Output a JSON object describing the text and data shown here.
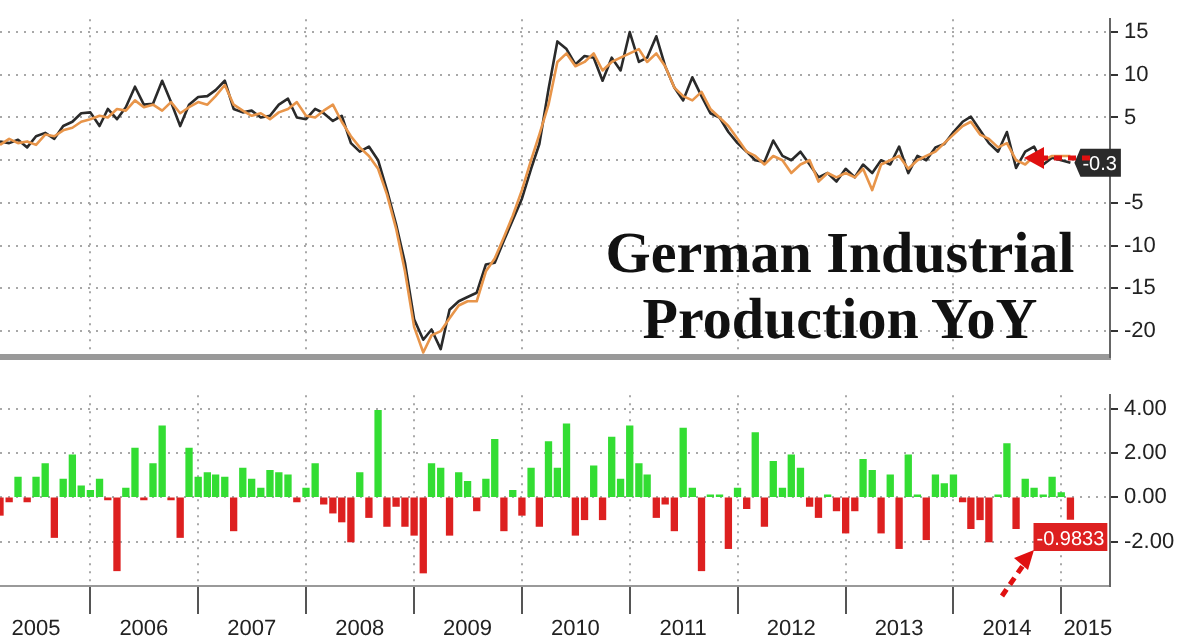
{
  "chart_data": [
    {
      "type": "line",
      "title": "German Industrial Production YoY",
      "x": [
        "2005-03",
        "2005-04",
        "2005-05",
        "2005-06",
        "2005-07",
        "2005-08",
        "2005-09",
        "2005-10",
        "2005-11",
        "2005-12",
        "2006-01",
        "2006-02",
        "2006-03",
        "2006-04",
        "2006-05",
        "2006-06",
        "2006-07",
        "2006-08",
        "2006-09",
        "2006-10",
        "2006-11",
        "2006-12",
        "2007-01",
        "2007-02",
        "2007-03",
        "2007-04",
        "2007-05",
        "2007-06",
        "2007-07",
        "2007-08",
        "2007-09",
        "2007-10",
        "2007-11",
        "2007-12",
        "2008-01",
        "2008-02",
        "2008-03",
        "2008-04",
        "2008-05",
        "2008-06",
        "2008-07",
        "2008-08",
        "2008-09",
        "2008-10",
        "2008-11",
        "2008-12",
        "2009-01",
        "2009-02",
        "2009-03",
        "2009-04",
        "2009-05",
        "2009-06",
        "2009-07",
        "2009-08",
        "2009-09",
        "2009-10",
        "2009-11",
        "2009-12",
        "2010-01",
        "2010-02",
        "2010-03",
        "2010-04",
        "2010-05",
        "2010-06",
        "2010-07",
        "2010-08",
        "2010-09",
        "2010-10",
        "2010-11",
        "2010-12",
        "2011-01",
        "2011-02",
        "2011-03",
        "2011-04",
        "2011-05",
        "2011-06",
        "2011-07",
        "2011-08",
        "2011-09",
        "2011-10",
        "2011-11",
        "2011-12",
        "2012-01",
        "2012-02",
        "2012-03",
        "2012-04",
        "2012-05",
        "2012-06",
        "2012-07",
        "2012-08",
        "2012-09",
        "2012-10",
        "2012-11",
        "2012-12",
        "2013-01",
        "2013-02",
        "2013-03",
        "2013-04",
        "2013-05",
        "2013-06",
        "2013-07",
        "2013-08",
        "2013-09",
        "2013-10",
        "2013-11",
        "2013-12",
        "2014-01",
        "2014-02",
        "2014-03",
        "2014-04",
        "2014-05",
        "2014-06",
        "2014-07",
        "2014-08",
        "2014-09",
        "2014-10",
        "2014-11",
        "2014-12",
        "2015-01",
        "2015-02"
      ],
      "series": [
        {
          "color": "#e8954a",
          "values": [
            1.8,
            2.5,
            2.0,
            2.2,
            1.8,
            3.0,
            2.8,
            3.5,
            3.8,
            4.5,
            4.8,
            5.2,
            5.0,
            6.0,
            5.8,
            7.0,
            6.2,
            6.5,
            5.8,
            6.8,
            5.5,
            6.2,
            6.8,
            6.5,
            7.5,
            8.8,
            6.5,
            5.8,
            5.2,
            5.5,
            4.8,
            5.6,
            6.0,
            6.8,
            5.2,
            5.0,
            5.8,
            6.5,
            4.5,
            2.8,
            1.5,
            0.5,
            -1.0,
            -4.0,
            -8.0,
            -13.0,
            -19.5,
            -22.5,
            -20.5,
            -20.0,
            -18.5,
            -17.0,
            -16.5,
            -16.5,
            -13.0,
            -11.5,
            -9.0,
            -6.5,
            -3.5,
            0.0,
            3.0,
            6.5,
            11.5,
            12.5,
            11.0,
            11.5,
            12.5,
            10.5,
            11.5,
            12.0,
            12.5,
            13.0,
            11.5,
            12.5,
            11.0,
            8.5,
            7.5,
            7.0,
            8.0,
            6.0,
            5.0,
            4.0,
            2.5,
            1.0,
            0.5,
            -0.5,
            0.5,
            0.0,
            -1.5,
            -0.5,
            0.0,
            -2.5,
            -1.5,
            -2.0,
            -1.5,
            -2.0,
            -1.0,
            -3.5,
            -0.5,
            0.0,
            0.5,
            -1.0,
            0.0,
            0.5,
            1.0,
            2.0,
            3.0,
            4.0,
            4.5,
            3.0,
            2.5,
            1.5,
            2.0,
            0.0,
            -0.5,
            0.5,
            0.0,
            0.5,
            0.5,
            0.5
          ]
        },
        {
          "color": "#2a2a2a",
          "values": [
            2.2,
            2.0,
            2.4,
            1.5,
            2.8,
            3.2,
            2.5,
            4.0,
            4.5,
            5.5,
            5.6,
            4.0,
            6.0,
            4.8,
            6.2,
            8.6,
            6.5,
            6.6,
            9.3,
            6.8,
            4.0,
            6.5,
            7.4,
            7.5,
            8.2,
            9.3,
            6.0,
            5.6,
            5.8,
            5.0,
            5.2,
            6.5,
            7.2,
            5.0,
            4.8,
            6.0,
            5.5,
            4.6,
            5.2,
            2.0,
            1.0,
            1.6,
            0.0,
            -3.5,
            -7.5,
            -12.0,
            -18.6,
            -21.0,
            -19.8,
            -22.1,
            -17.5,
            -16.5,
            -16.0,
            -15.5,
            -12.2,
            -12.0,
            -9.4,
            -7.0,
            -4.5,
            -1.0,
            1.9,
            8.3,
            13.9,
            13.0,
            11.2,
            12.2,
            12.0,
            9.3,
            12.0,
            10.5,
            15.0,
            11.5,
            12.0,
            14.5,
            11.0,
            8.5,
            7.0,
            9.7,
            7.5,
            5.5,
            5.0,
            3.3,
            2.0,
            1.0,
            0.0,
            -0.2,
            2.3,
            0.5,
            0.0,
            1.0,
            -0.5,
            -2.0,
            -1.5,
            -2.5,
            -1.0,
            -2.0,
            -0.5,
            -1.5,
            0.0,
            -0.5,
            1.6,
            -1.5,
            0.5,
            0.0,
            1.5,
            1.9,
            3.3,
            4.5,
            5.1,
            3.5,
            2.0,
            1.0,
            3.3,
            -0.9,
            1.0,
            1.6,
            -0.5,
            0.3,
            0.0,
            -0.3
          ],
          "value_labels": [
            null,
            null,
            null,
            null,
            null,
            null,
            null,
            null,
            null,
            null,
            null,
            null,
            null,
            null,
            null,
            null,
            null,
            null,
            null,
            null,
            null,
            null,
            null,
            null,
            null,
            null,
            null,
            null,
            null,
            null,
            null,
            null,
            null,
            null,
            null,
            null,
            null,
            null,
            null,
            null,
            null,
            null,
            null,
            null,
            null,
            null,
            null,
            null,
            null,
            null,
            null,
            null,
            null,
            null,
            null,
            null,
            null,
            null,
            null,
            null,
            null,
            null,
            null,
            null,
            null,
            null,
            null,
            null,
            null,
            null,
            null,
            null,
            null,
            null,
            null,
            null,
            null,
            null,
            null,
            null,
            null,
            null,
            null,
            null,
            null,
            null,
            null,
            null,
            null,
            null,
            null,
            null,
            null,
            null,
            null,
            null,
            null,
            null,
            null,
            null,
            null,
            null,
            null,
            null,
            null,
            null,
            null,
            null,
            null,
            null,
            null,
            null,
            null,
            null,
            null,
            null,
            null,
            null,
            null,
            "-0.3"
          ]
        }
      ],
      "xlim": [
        "2005-03-01",
        "2015-06-15"
      ],
      "xticks": [
        "2006-01",
        "2008-01",
        "2010-01",
        "2012-01",
        "2014-01"
      ],
      "ylim": [
        -23,
        16.5
      ],
      "yticks": [
        15,
        10,
        5,
        {
          "value": 0,
          "label": null
        },
        -5,
        -10,
        -15,
        -20
      ],
      "grid": true,
      "tick_labels": "y"
    },
    {
      "type": "bar",
      "x": [
        "2005-03",
        "2005-04",
        "2005-05",
        "2005-06",
        "2005-07",
        "2005-08",
        "2005-09",
        "2005-10",
        "2005-11",
        "2005-12",
        "2006-01",
        "2006-02",
        "2006-03",
        "2006-04",
        "2006-05",
        "2006-06",
        "2006-07",
        "2006-08",
        "2006-09",
        "2006-10",
        "2006-11",
        "2006-12",
        "2007-01",
        "2007-02",
        "2007-03",
        "2007-04",
        "2007-05",
        "2007-06",
        "2007-07",
        "2007-08",
        "2007-09",
        "2007-10",
        "2007-11",
        "2007-12",
        "2008-01",
        "2008-02",
        "2008-03",
        "2008-04",
        "2008-05",
        "2008-06",
        "2008-07",
        "2008-08",
        "2008-09",
        "2008-10",
        "2008-11",
        "2008-12",
        "2009-01",
        "2009-02",
        "2009-03",
        "2009-04",
        "2009-05",
        "2009-06",
        "2009-07",
        "2009-08",
        "2009-09",
        "2009-10",
        "2009-11",
        "2009-12",
        "2010-01",
        "2010-02",
        "2010-03",
        "2010-04",
        "2010-05",
        "2010-06",
        "2010-07",
        "2010-08",
        "2010-09",
        "2010-10",
        "2010-11",
        "2010-12",
        "2011-01",
        "2011-02",
        "2011-03",
        "2011-04",
        "2011-05",
        "2011-06",
        "2011-07",
        "2011-08",
        "2011-09",
        "2011-10",
        "2011-11",
        "2011-12",
        "2012-01",
        "2012-02",
        "2012-03",
        "2012-04",
        "2012-05",
        "2012-06",
        "2012-07",
        "2012-08",
        "2012-09",
        "2012-10",
        "2012-11",
        "2012-12",
        "2013-01",
        "2013-02",
        "2013-03",
        "2013-04",
        "2013-05",
        "2013-06",
        "2013-07",
        "2013-08",
        "2013-09",
        "2013-10",
        "2013-11",
        "2013-12",
        "2014-01",
        "2014-02",
        "2014-03",
        "2014-04",
        "2014-05",
        "2014-06",
        "2014-07",
        "2014-08",
        "2014-09",
        "2014-10",
        "2014-11",
        "2014-12",
        "2015-01",
        "2015-02"
      ],
      "values": [
        -0.8,
        -0.2,
        0.9,
        -0.2,
        0.9,
        1.5,
        -1.8,
        0.8,
        1.9,
        0.5,
        0.3,
        0.8,
        -0.1,
        -3.3,
        0.4,
        2.2,
        -0.1,
        1.5,
        3.2,
        -0.1,
        -1.8,
        2.2,
        0.9,
        1.1,
        1.0,
        0.9,
        -1.5,
        1.3,
        0.8,
        0.4,
        1.2,
        1.1,
        1.0,
        -0.2,
        0.4,
        1.5,
        -0.3,
        -0.7,
        -1.1,
        -2.0,
        1.1,
        -0.9,
        3.9,
        -1.3,
        -0.4,
        -1.3,
        -1.7,
        -3.4,
        1.5,
        1.3,
        -1.7,
        1.1,
        0.7,
        -0.6,
        0.8,
        2.6,
        -1.5,
        0.3,
        -0.8,
        1.3,
        -1.3,
        2.5,
        1.3,
        3.3,
        -1.7,
        -1.0,
        1.4,
        -1.0,
        2.7,
        0.8,
        3.2,
        1.5,
        1.0,
        -0.9,
        -0.3,
        -1.5,
        3.1,
        0.4,
        -3.3,
        0.1,
        0.1,
        -2.3,
        0.4,
        -0.5,
        2.9,
        -1.3,
        1.6,
        0.4,
        1.9,
        1.3,
        -0.4,
        -0.9,
        0.1,
        -0.6,
        -1.6,
        -0.6,
        1.7,
        1.2,
        -1.6,
        1.0,
        -2.3,
        1.9,
        0.1,
        -1.9,
        1.0,
        0.6,
        1.0,
        -0.2,
        -1.4,
        -1.0,
        -2.0,
        0.1,
        2.4,
        -1.4,
        0.8,
        0.4,
        0.1,
        0.9,
        0.2,
        -0.9833
      ],
      "colors": [
        "#dd2020",
        "#dd2020",
        "#33dd33",
        "#dd2020",
        "#33dd33",
        "#33dd33",
        "#dd2020",
        "#33dd33",
        "#33dd33",
        "#33dd33",
        "#33dd33",
        "#33dd33",
        "#dd2020",
        "#dd2020",
        "#33dd33",
        "#33dd33",
        "#dd2020",
        "#33dd33",
        "#33dd33",
        "#dd2020",
        "#dd2020",
        "#33dd33",
        "#33dd33",
        "#33dd33",
        "#33dd33",
        "#33dd33",
        "#dd2020",
        "#33dd33",
        "#33dd33",
        "#33dd33",
        "#33dd33",
        "#33dd33",
        "#33dd33",
        "#dd2020",
        "#33dd33",
        "#33dd33",
        "#dd2020",
        "#dd2020",
        "#dd2020",
        "#dd2020",
        "#33dd33",
        "#dd2020",
        "#33dd33",
        "#dd2020",
        "#dd2020",
        "#dd2020",
        "#dd2020",
        "#dd2020",
        "#33dd33",
        "#33dd33",
        "#dd2020",
        "#33dd33",
        "#33dd33",
        "#dd2020",
        "#33dd33",
        "#33dd33",
        "#dd2020",
        "#33dd33",
        "#dd2020",
        "#33dd33",
        "#dd2020",
        "#33dd33",
        "#33dd33",
        "#33dd33",
        "#dd2020",
        "#dd2020",
        "#33dd33",
        "#dd2020",
        "#33dd33",
        "#33dd33",
        "#33dd33",
        "#33dd33",
        "#33dd33",
        "#dd2020",
        "#dd2020",
        "#dd2020",
        "#33dd33",
        "#33dd33",
        "#dd2020",
        "#33dd33",
        "#33dd33",
        "#dd2020",
        "#33dd33",
        "#dd2020",
        "#33dd33",
        "#dd2020",
        "#33dd33",
        "#33dd33",
        "#33dd33",
        "#33dd33",
        "#dd2020",
        "#dd2020",
        "#33dd33",
        "#dd2020",
        "#dd2020",
        "#dd2020",
        "#33dd33",
        "#33dd33",
        "#dd2020",
        "#33dd33",
        "#dd2020",
        "#33dd33",
        "#33dd33",
        "#dd2020",
        "#33dd33",
        "#33dd33",
        "#33dd33",
        "#dd2020",
        "#dd2020",
        "#dd2020",
        "#dd2020",
        "#33dd33",
        "#33dd33",
        "#dd2020",
        "#33dd33",
        "#33dd33",
        "#33dd33",
        "#33dd33",
        "#33dd33",
        "#dd2020"
      ],
      "value_labels": [
        null,
        null,
        null,
        null,
        null,
        null,
        null,
        null,
        null,
        null,
        null,
        null,
        null,
        null,
        null,
        null,
        null,
        null,
        null,
        null,
        null,
        null,
        null,
        null,
        null,
        null,
        null,
        null,
        null,
        null,
        null,
        null,
        null,
        null,
        null,
        null,
        null,
        null,
        null,
        null,
        null,
        null,
        null,
        null,
        null,
        null,
        null,
        null,
        null,
        null,
        null,
        null,
        null,
        null,
        null,
        null,
        null,
        null,
        null,
        null,
        null,
        null,
        null,
        null,
        null,
        null,
        null,
        null,
        null,
        null,
        null,
        null,
        null,
        null,
        null,
        null,
        null,
        null,
        null,
        null,
        null,
        null,
        null,
        null,
        null,
        null,
        null,
        null,
        null,
        null,
        null,
        null,
        null,
        null,
        null,
        null,
        null,
        null,
        null,
        null,
        null,
        null,
        null,
        null,
        null,
        null,
        null,
        null,
        null,
        null,
        null,
        null,
        null,
        null,
        null,
        null,
        null,
        null,
        null,
        "-0.9833"
      ],
      "xlim": [
        "2005-03-01",
        "2015-06-15"
      ],
      "xticks": [
        {
          "value": "2005-07",
          "label": "2005"
        },
        {
          "value": "2006-01",
          "label": null
        },
        {
          "value": "2006-07",
          "label": "2006"
        },
        {
          "value": "2007-01",
          "label": null
        },
        {
          "value": "2007-07",
          "label": "2007"
        },
        {
          "value": "2008-01",
          "label": null
        },
        {
          "value": "2008-07",
          "label": "2008"
        },
        {
          "value": "2009-01",
          "label": null
        },
        {
          "value": "2009-07",
          "label": "2009"
        },
        {
          "value": "2010-01",
          "label": null
        },
        {
          "value": "2010-07",
          "label": "2010"
        },
        {
          "value": "2011-01",
          "label": null
        },
        {
          "value": "2011-07",
          "label": "2011"
        },
        {
          "value": "2012-01",
          "label": null
        },
        {
          "value": "2012-07",
          "label": "2012"
        },
        {
          "value": "2013-01",
          "label": null
        },
        {
          "value": "2013-07",
          "label": "2013"
        },
        {
          "value": "2014-01",
          "label": null
        },
        {
          "value": "2014-07",
          "label": "2014"
        },
        {
          "value": "2015-01",
          "label": null
        },
        {
          "value": "2015-04",
          "label": "2015"
        }
      ],
      "ylim": [
        -4,
        4.6
      ],
      "yticks": [
        {
          "value": 4,
          "label": "4.00"
        },
        {
          "value": 2,
          "label": "2.00"
        },
        {
          "value": 0,
          "label": "0.00"
        },
        {
          "value": -2,
          "label": "-2.00"
        }
      ],
      "grid": true
    }
  ]
}
